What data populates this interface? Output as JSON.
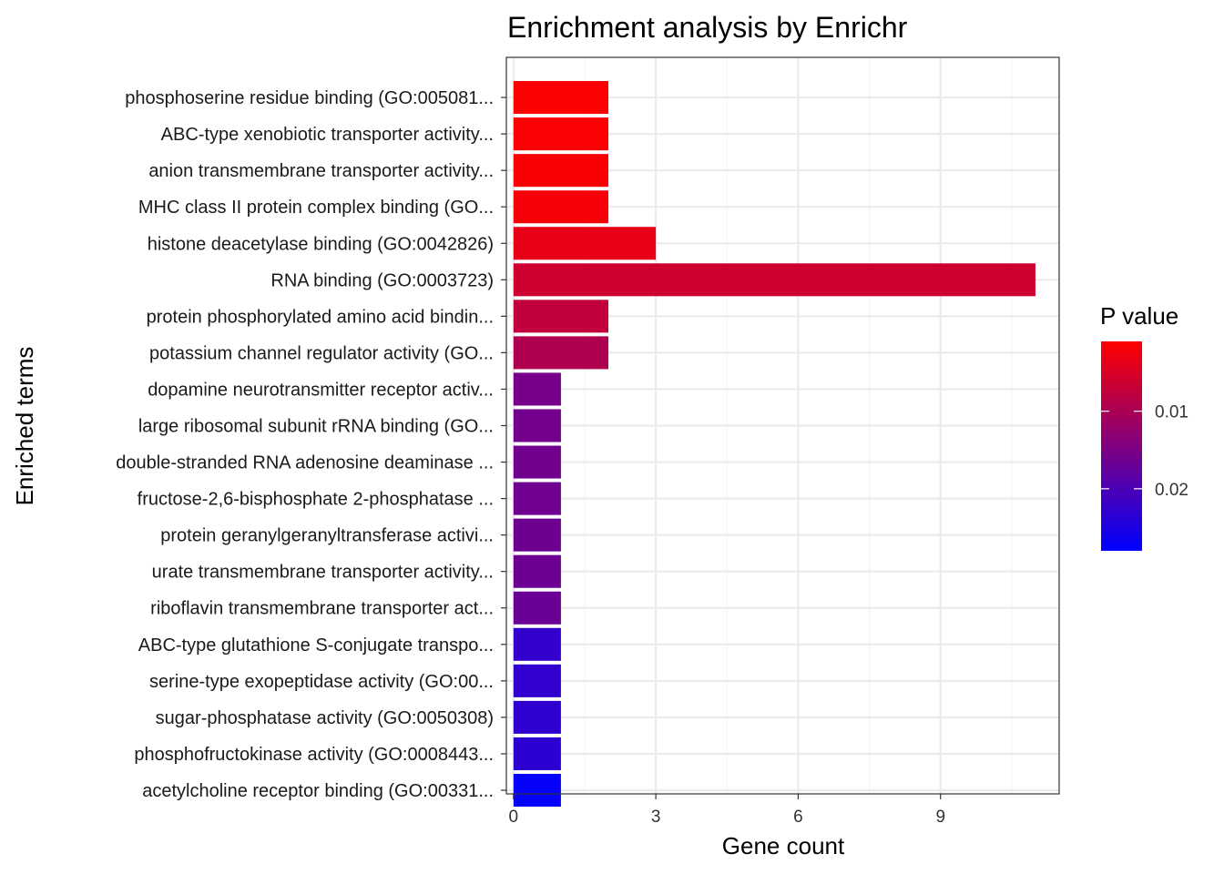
{
  "chart_data": {
    "type": "bar",
    "orientation": "horizontal",
    "title": "Enrichment analysis by Enrichr",
    "xlabel": "Gene count",
    "ylabel": "Enriched terms",
    "xlim": [
      -0.15,
      11.5
    ],
    "xticks": [
      0,
      3,
      6,
      9
    ],
    "xtick_labels": [
      "0",
      "3",
      "6",
      "9"
    ],
    "grid": true,
    "categories": [
      "phosphoserine residue binding (GO:005081...",
      "ABC-type xenobiotic transporter activity...",
      "anion transmembrane transporter activity...",
      "MHC class II protein complex binding (GO...",
      "histone deacetylase binding (GO:0042826)",
      "RNA binding (GO:0003723)",
      "protein phosphorylated amino acid bindin...",
      "potassium channel regulator activity (GO...",
      "dopamine neurotransmitter receptor activ...",
      "large ribosomal subunit rRNA binding (GO...",
      "double-stranded RNA adenosine deaminase ...",
      "fructose-2,6-bisphosphate 2-phosphatase ...",
      "protein geranylgeranyltransferase activi...",
      "urate transmembrane transporter activity...",
      "riboflavin transmembrane transporter act...",
      "ABC-type glutathione S-conjugate transpo...",
      "serine-type exopeptidase activity (GO:00...",
      "sugar-phosphatase activity (GO:0050308)",
      "phosphofructokinase activity (GO:0008443...",
      "acetylcholine receptor binding (GO:00331..."
    ],
    "values": [
      2,
      2,
      2,
      2,
      3,
      11,
      2,
      2,
      1,
      1,
      1,
      1,
      1,
      1,
      1,
      1,
      1,
      1,
      1,
      1
    ],
    "p_values": [
      0.0012,
      0.0013,
      0.0015,
      0.0018,
      0.0035,
      0.0062,
      0.0075,
      0.0095,
      0.0155,
      0.0158,
      0.016,
      0.0162,
      0.0164,
      0.0166,
      0.0168,
      0.0225,
      0.0228,
      0.023,
      0.0232,
      0.0275
    ],
    "legend": {
      "title": "P value",
      "position": "right",
      "type": "colorbar",
      "range": [
        0.001,
        0.028
      ],
      "ticks": [
        0.01,
        0.02
      ],
      "tick_labels": [
        "0.01",
        "0.02"
      ],
      "low_color": "#ff0000",
      "high_color": "#0000ff"
    },
    "colors": {
      "panel_border": "#333333",
      "grid_major": "#ebebeb",
      "grid_minor": "#f5f5f5"
    }
  }
}
